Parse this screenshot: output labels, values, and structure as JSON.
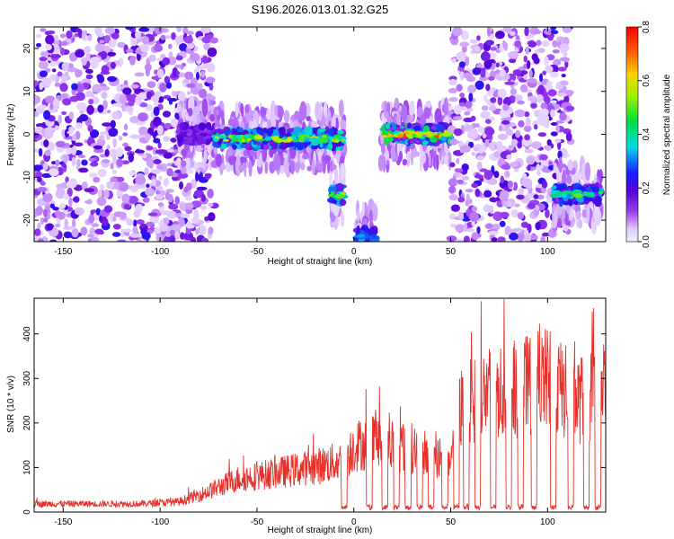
{
  "title": "S196.2026.013.01.32.G25",
  "chart_data": [
    {
      "type": "heatmap",
      "xlabel": "Height of straight line (km)",
      "ylabel": "Frequency (Hz)",
      "xlim": [
        -165,
        130
      ],
      "ylim": [
        -25,
        25
      ],
      "xticks": [
        -150,
        -100,
        -50,
        0,
        50,
        100
      ],
      "yticks": [
        -20,
        -10,
        0,
        10,
        20
      ],
      "colorbar": {
        "label": "Normalized spectral amplitude",
        "range": [
          0.0,
          0.8
        ],
        "ticks": [
          0.0,
          0.2,
          0.4,
          0.6,
          0.8
        ]
      },
      "segments": [
        {
          "x_from": -165,
          "x_to": -72,
          "kind": "broadband_noise"
        },
        {
          "x_from": -90,
          "x_to": -72,
          "freq": 0,
          "amplitude": 0.2
        },
        {
          "x_from": -72,
          "x_to": -5,
          "freq": -1,
          "amplitude": 0.6
        },
        {
          "x_from": -12,
          "x_to": -5,
          "freq": -14,
          "amplitude": 0.55
        },
        {
          "x_from": 1,
          "x_to": 11,
          "freq": -24,
          "amplitude": 0.4
        },
        {
          "x_from": 14,
          "x_to": 50,
          "freq": 0,
          "amplitude": 0.75
        },
        {
          "x_from": 50,
          "x_to": 112,
          "kind": "broadband_noise"
        },
        {
          "x_from": 103,
          "x_to": 128,
          "freq": -14,
          "amplitude": 0.5
        }
      ]
    },
    {
      "type": "line",
      "xlabel": "Height of straight line (km)",
      "ylabel": "SNR (10 * v/v)",
      "xlim": [
        -165,
        130
      ],
      "ylim": [
        0,
        480
      ],
      "xticks": [
        -150,
        -100,
        -50,
        0,
        50,
        100
      ],
      "yticks": [
        0,
        100,
        200,
        300,
        400
      ],
      "series": [
        {
          "name": "SNR",
          "color": "#e8302a",
          "envelope": [
            {
              "x": -165,
              "y": 20
            },
            {
              "x": -110,
              "y": 20
            },
            {
              "x": -90,
              "y": 25
            },
            {
              "x": -75,
              "y": 50
            },
            {
              "x": -60,
              "y": 80
            },
            {
              "x": -40,
              "y": 95
            },
            {
              "x": -20,
              "y": 110
            },
            {
              "x": -5,
              "y": 125
            },
            {
              "x": 0,
              "y": 160
            },
            {
              "x": 10,
              "y": 170
            },
            {
              "x": 20,
              "y": 165
            },
            {
              "x": 35,
              "y": 150
            },
            {
              "x": 50,
              "y": 110
            },
            {
              "x": 55,
              "y": 250
            },
            {
              "x": 70,
              "y": 290
            },
            {
              "x": 85,
              "y": 300
            },
            {
              "x": 100,
              "y": 320
            },
            {
              "x": 115,
              "y": 270
            },
            {
              "x": 130,
              "y": 290
            }
          ],
          "dips": [
            -5,
            8,
            16,
            22,
            28,
            34,
            40,
            47,
            53,
            58,
            64,
            72,
            80,
            86,
            93,
            103,
            112,
            120,
            126
          ]
        }
      ]
    }
  ]
}
